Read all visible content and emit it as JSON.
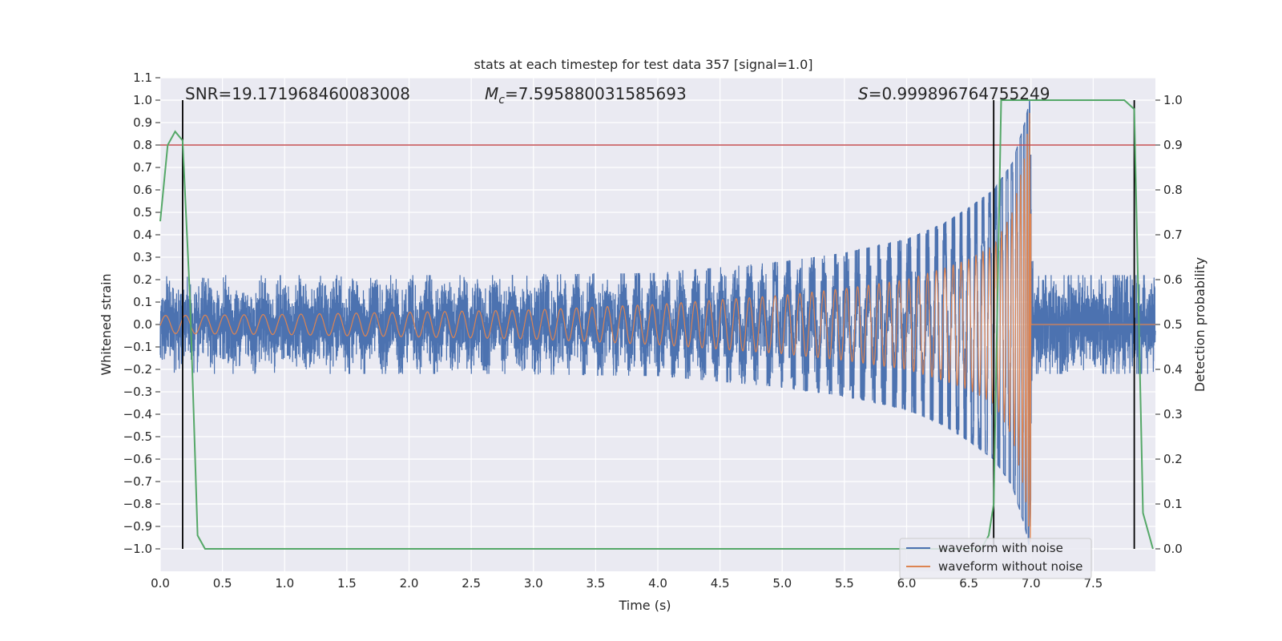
{
  "chart_data": {
    "type": "line",
    "title": "stats at each timestep for test data 357 [signal=1.0]",
    "xlabel": "Time (s)",
    "ylabel": "Whitened strain",
    "y2label": "Detection probability",
    "xlim": [
      0.0,
      8.0
    ],
    "ylim": [
      -1.1,
      1.1
    ],
    "y2lim": [
      -0.05,
      1.05
    ],
    "x_ticks": [
      "0.0",
      "0.5",
      "1.0",
      "1.5",
      "2.0",
      "2.5",
      "3.0",
      "3.5",
      "4.0",
      "4.5",
      "5.0",
      "5.5",
      "6.0",
      "6.5",
      "7.0",
      "7.5"
    ],
    "y_ticks": [
      "−1.0",
      "−0.9",
      "−0.8",
      "−0.7",
      "−0.6",
      "−0.5",
      "−0.4",
      "−0.3",
      "−0.2",
      "−0.1",
      "0.0",
      "0.1",
      "0.2",
      "0.3",
      "0.4",
      "0.5",
      "0.6",
      "0.7",
      "0.8",
      "0.9",
      "1.0",
      "1.1"
    ],
    "y2_ticks": [
      "0.0",
      "0.1",
      "0.2",
      "0.3",
      "0.4",
      "0.5",
      "0.6",
      "0.7",
      "0.8",
      "0.9",
      "1.0"
    ],
    "grid": true,
    "legend_position": "lower-right",
    "annotations": {
      "snr": "SNR=19.171968460083008",
      "mc_symbol": "M",
      "mc_sub": "c",
      "mc_value": "=7.595880031585693",
      "s_symbol": "S",
      "s_value": "=0.999896764755249"
    },
    "threshold": {
      "y": 0.8,
      "color": "#c44e52"
    },
    "vertical_lines": [
      0.18,
      6.7,
      7.83
    ],
    "series": [
      {
        "name": "waveform with noise",
        "color": "#4c72b0",
        "axis": "left",
        "noise_envelope": [
          [
            0.0,
            0.2
          ],
          [
            4.0,
            0.23
          ],
          [
            5.0,
            0.28
          ],
          [
            5.5,
            0.32
          ],
          [
            6.0,
            0.38
          ],
          [
            6.3,
            0.45
          ],
          [
            6.5,
            0.52
          ],
          [
            6.7,
            0.6
          ],
          [
            6.85,
            0.72
          ],
          [
            6.95,
            0.9
          ],
          [
            6.99,
            1.0
          ],
          [
            7.02,
            0.2
          ],
          [
            8.0,
            0.2
          ]
        ]
      },
      {
        "name": "waveform without noise",
        "color": "#dd8452",
        "axis": "left",
        "amplitude": [
          [
            0.0,
            0.04
          ],
          [
            1.0,
            0.045
          ],
          [
            2.0,
            0.055
          ],
          [
            3.0,
            0.065
          ],
          [
            4.0,
            0.09
          ],
          [
            5.0,
            0.13
          ],
          [
            5.5,
            0.16
          ],
          [
            6.0,
            0.2
          ],
          [
            6.3,
            0.25
          ],
          [
            6.5,
            0.29
          ],
          [
            6.7,
            0.35
          ],
          [
            6.85,
            0.5
          ],
          [
            6.95,
            0.75
          ],
          [
            7.0,
            1.0
          ],
          [
            7.02,
            0.0
          ],
          [
            8.0,
            0.0
          ]
        ],
        "merger_time": 7.0
      },
      {
        "name": "detection probability",
        "color": "#55a868",
        "axis": "right",
        "x": [
          0.0,
          0.06,
          0.12,
          0.18,
          0.24,
          0.3,
          0.36,
          0.42,
          6.6,
          6.66,
          6.7,
          6.76,
          7.75,
          7.83,
          7.9,
          7.98
        ],
        "y": [
          0.73,
          0.9,
          0.93,
          0.91,
          0.55,
          0.03,
          0.0,
          0.0,
          0.0,
          0.03,
          0.1,
          1.0,
          1.0,
          0.98,
          0.08,
          0.0
        ]
      }
    ]
  }
}
